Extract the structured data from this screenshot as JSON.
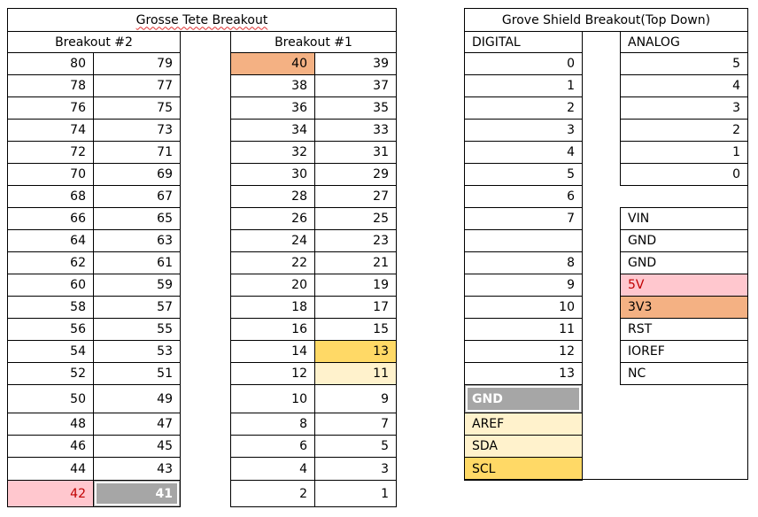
{
  "colors": {
    "orange": "#f4b183",
    "pink": "#ffc7ce",
    "yellow": "#ffd966",
    "cream": "#fff2cc",
    "gray": "#a6a6a6",
    "pink_text": "#c00000",
    "white_text": "#ffffff"
  },
  "grosse_tete": {
    "title": "Grosse Tete Breakout",
    "breakout2_header": "Breakout #2",
    "breakout1_header": "Breakout #1",
    "rows": [
      [
        "80",
        "79",
        "40",
        "39"
      ],
      [
        "78",
        "77",
        "38",
        "37"
      ],
      [
        "76",
        "75",
        "36",
        "35"
      ],
      [
        "74",
        "73",
        "34",
        "33"
      ],
      [
        "72",
        "71",
        "32",
        "31"
      ],
      [
        "70",
        "69",
        "30",
        "29"
      ],
      [
        "68",
        "67",
        "28",
        "27"
      ],
      [
        "66",
        "65",
        "26",
        "25"
      ],
      [
        "64",
        "63",
        "24",
        "23"
      ],
      [
        "62",
        "61",
        "22",
        "21"
      ],
      [
        "60",
        "59",
        "20",
        "19"
      ],
      [
        "58",
        "57",
        "18",
        "17"
      ],
      [
        "56",
        "55",
        "16",
        "15"
      ],
      [
        "54",
        "53",
        "14",
        "13"
      ],
      [
        "52",
        "51",
        "12",
        "11"
      ],
      [
        "50",
        "49",
        "10",
        "9"
      ],
      [
        "48",
        "47",
        "8",
        "7"
      ],
      [
        "46",
        "45",
        "6",
        "5"
      ],
      [
        "44",
        "43",
        "4",
        "3"
      ],
      [
        "42",
        "41",
        "2",
        "1"
      ]
    ]
  },
  "grove_shield": {
    "title": "Grove Shield Breakout(Top Down)",
    "digital_header": "DIGITAL",
    "analog_header": "ANALOG",
    "digital": [
      "0",
      "1",
      "2",
      "3",
      "4",
      "5",
      "6",
      "7",
      "",
      "8",
      "9",
      "10",
      "11",
      "12",
      "13",
      "GND",
      "AREF",
      "SDA",
      "SCL"
    ],
    "analog": [
      "5",
      "4",
      "3",
      "2",
      "1",
      "0"
    ],
    "power": [
      "VIN",
      "GND",
      "GND",
      "5V",
      "3V3",
      "RST",
      "IOREF",
      "NC"
    ]
  }
}
